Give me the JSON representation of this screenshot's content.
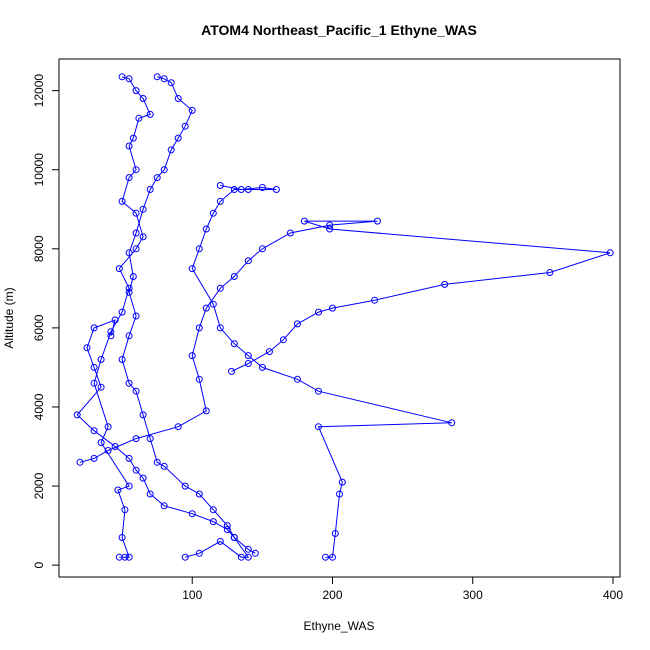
{
  "chart_data": {
    "type": "scatter",
    "title": "ATOM4 Northeast_Pacific_1 Ethyne_WAS",
    "xlabel": "Ethyne_WAS",
    "ylabel": "Altitude (m)",
    "xlim": [
      5,
      405
    ],
    "ylim": [
      -300,
      12800
    ],
    "x_ticks": [
      100,
      200,
      300,
      400
    ],
    "y_ticks": [
      0,
      2000,
      4000,
      6000,
      8000,
      10000,
      12000
    ],
    "grid": false,
    "legend": "none",
    "line_color": "#0000ff",
    "marker": "open-circle",
    "profiles": [
      [
        [
          48,
          200
        ],
        [
          52,
          200
        ],
        [
          55,
          200
        ],
        [
          50,
          700
        ],
        [
          52,
          1400
        ],
        [
          47,
          1900
        ],
        [
          55,
          2000
        ],
        [
          35,
          3100
        ],
        [
          40,
          3500
        ],
        [
          30,
          4600
        ],
        [
          35,
          5200
        ],
        [
          42,
          5900
        ],
        [
          50,
          6400
        ],
        [
          55,
          7000
        ],
        [
          48,
          7500
        ],
        [
          60,
          8000
        ],
        [
          65,
          8300
        ],
        [
          60,
          8900
        ],
        [
          50,
          9200
        ],
        [
          55,
          9800
        ],
        [
          60,
          10000
        ],
        [
          55,
          10600
        ],
        [
          58,
          10800
        ],
        [
          62,
          11300
        ],
        [
          70,
          11400
        ],
        [
          65,
          11800
        ],
        [
          60,
          12000
        ],
        [
          55,
          12300
        ],
        [
          50,
          12350
        ]
      ],
      [
        [
          95,
          200
        ],
        [
          105,
          300
        ],
        [
          120,
          600
        ],
        [
          135,
          200
        ],
        [
          140,
          200
        ],
        [
          130,
          700
        ],
        [
          125,
          1000
        ],
        [
          115,
          1400
        ],
        [
          105,
          1800
        ],
        [
          95,
          2000
        ],
        [
          80,
          2500
        ],
        [
          75,
          2600
        ],
        [
          70,
          3200
        ],
        [
          65,
          3800
        ],
        [
          60,
          4400
        ],
        [
          55,
          4600
        ],
        [
          50,
          5200
        ],
        [
          55,
          5800
        ],
        [
          60,
          6300
        ],
        [
          55,
          6900
        ],
        [
          58,
          7300
        ],
        [
          55,
          7900
        ],
        [
          60,
          8400
        ],
        [
          65,
          9000
        ],
        [
          70,
          9500
        ],
        [
          75,
          9800
        ],
        [
          80,
          10000
        ],
        [
          85,
          10500
        ],
        [
          90,
          10800
        ],
        [
          95,
          11100
        ],
        [
          100,
          11500
        ],
        [
          90,
          11800
        ],
        [
          85,
          12200
        ],
        [
          80,
          12300
        ],
        [
          75,
          12350
        ]
      ],
      [
        [
          195,
          200
        ],
        [
          200,
          200
        ],
        [
          202,
          800
        ],
        [
          205,
          1800
        ],
        [
          207,
          2100
        ],
        [
          190,
          3500
        ],
        [
          285,
          3600
        ],
        [
          190,
          4400
        ],
        [
          175,
          4700
        ],
        [
          150,
          5000
        ],
        [
          140,
          5300
        ],
        [
          130,
          5600
        ],
        [
          120,
          6000
        ],
        [
          115,
          6600
        ],
        [
          100,
          7500
        ],
        [
          105,
          8000
        ],
        [
          110,
          8500
        ],
        [
          115,
          8900
        ],
        [
          120,
          9200
        ],
        [
          130,
          9500
        ],
        [
          140,
          9500
        ],
        [
          160,
          9500
        ],
        [
          150,
          9550
        ],
        [
          135,
          9500
        ],
        [
          120,
          9600
        ]
      ],
      [
        [
          128,
          4900
        ],
        [
          140,
          5100
        ],
        [
          155,
          5400
        ],
        [
          165,
          5700
        ],
        [
          175,
          6100
        ],
        [
          190,
          6400
        ],
        [
          200,
          6500
        ],
        [
          230,
          6700
        ],
        [
          280,
          7100
        ],
        [
          355,
          7400
        ],
        [
          398,
          7900
        ],
        [
          198,
          8500
        ],
        [
          180,
          8700
        ],
        [
          232,
          8700
        ],
        [
          198,
          8600
        ],
        [
          170,
          8400
        ],
        [
          150,
          8000
        ],
        [
          140,
          7700
        ],
        [
          130,
          7300
        ],
        [
          120,
          7000
        ],
        [
          110,
          6500
        ],
        [
          105,
          6000
        ],
        [
          100,
          5300
        ],
        [
          105,
          4700
        ],
        [
          110,
          3900
        ],
        [
          90,
          3500
        ],
        [
          60,
          3200
        ],
        [
          40,
          2900
        ],
        [
          30,
          2700
        ],
        [
          20,
          2600
        ]
      ],
      [
        [
          42,
          5800
        ],
        [
          45,
          6200
        ],
        [
          30,
          6000
        ],
        [
          25,
          5500
        ],
        [
          30,
          5000
        ],
        [
          35,
          4500
        ],
        [
          18,
          3800
        ],
        [
          30,
          3400
        ],
        [
          45,
          3000
        ],
        [
          55,
          2700
        ],
        [
          60,
          2400
        ],
        [
          65,
          2200
        ],
        [
          70,
          1800
        ],
        [
          80,
          1500
        ],
        [
          100,
          1300
        ],
        [
          115,
          1100
        ],
        [
          125,
          900
        ],
        [
          130,
          700
        ],
        [
          140,
          400
        ],
        [
          145,
          300
        ]
      ]
    ]
  }
}
